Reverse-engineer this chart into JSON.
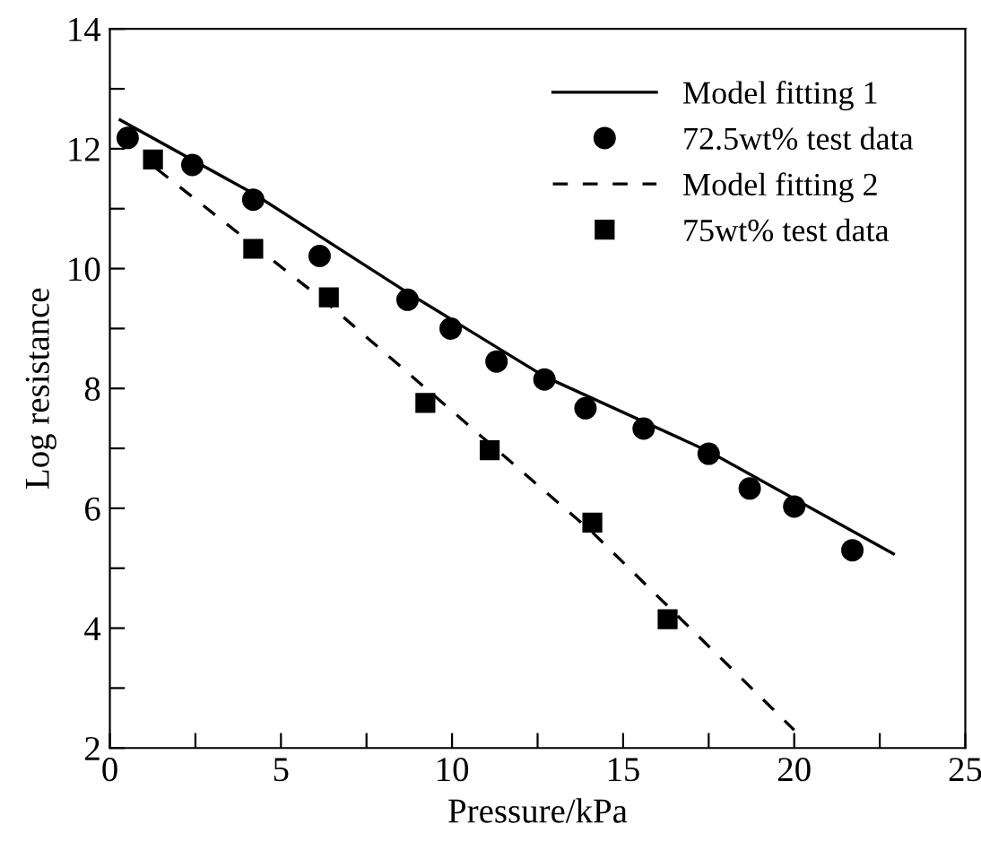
{
  "chart_data": {
    "type": "scatter",
    "xlabel": "Pressure/kPa",
    "ylabel": "Log resistance",
    "xlim": [
      0,
      25
    ],
    "ylim": [
      2,
      14
    ],
    "xticks": [
      0,
      {
        "value": 2.5,
        "label": null
      },
      5,
      {
        "value": 7.5,
        "label": null
      },
      10,
      {
        "value": 12.5,
        "label": null
      },
      15,
      {
        "value": 17.5,
        "label": null
      },
      20,
      {
        "value": 22.5,
        "label": null
      },
      25
    ],
    "yticks": [
      2,
      {
        "value": 3,
        "label": null
      },
      4,
      {
        "value": 5,
        "label": null
      },
      6,
      {
        "value": 7,
        "label": null
      },
      8,
      {
        "value": 9,
        "label": null
      },
      10,
      {
        "value": 11,
        "label": null
      },
      12,
      {
        "value": 13,
        "label": null
      },
      14
    ],
    "grid": false,
    "legend": "top right",
    "series": [
      {
        "name": "Model fitting 1",
        "type": "line",
        "line_style": "solid",
        "marker": "none",
        "color": "#000000",
        "x": [
          0.3,
          4.2,
          8.7,
          12.7,
          17.5,
          22.9
        ],
        "values": [
          12.48,
          11.25,
          9.6,
          8.2,
          6.95,
          5.24
        ]
      },
      {
        "name": "72.5wt% test data",
        "marker": "circle",
        "color": "#000000",
        "x": [
          0.52,
          2.41,
          4.19,
          6.13,
          8.7,
          9.96,
          11.3,
          12.7,
          13.9,
          15.6,
          17.5,
          18.7,
          20.0,
          21.7
        ],
        "values": [
          12.18,
          11.73,
          11.15,
          10.21,
          9.48,
          9.0,
          8.45,
          8.15,
          7.67,
          7.33,
          6.91,
          6.33,
          6.03,
          5.3
        ]
      },
      {
        "name": "Model fitting 2",
        "type": "line",
        "line_style": "dashed",
        "marker": "none",
        "color": "#000000",
        "x": [
          1.36,
          6.4,
          14.1,
          20.0
        ],
        "values": [
          11.67,
          9.4,
          5.6,
          2.3
        ]
      },
      {
        "name": "75wt% test data",
        "marker": "square",
        "color": "#000000",
        "x": [
          1.26,
          4.19,
          6.4,
          9.22,
          11.1,
          14.1,
          16.3
        ],
        "values": [
          11.82,
          10.33,
          9.52,
          7.76,
          6.97,
          5.76,
          4.15
        ]
      }
    ]
  }
}
